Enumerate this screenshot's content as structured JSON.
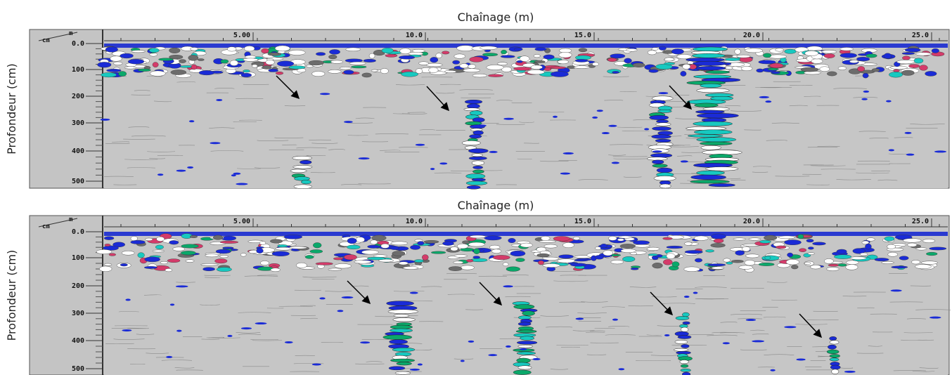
{
  "panels": [
    {
      "title": "Chaînage (m)",
      "y_label": "Profondeur (cm)",
      "x_unit": "m",
      "y_unit": "cm",
      "x_ticks": [
        "5.00",
        "10.0",
        "15.0",
        "20.0",
        "25.0"
      ],
      "y_ticks": [
        "0.0",
        "100",
        "200",
        "300",
        "400",
        "500"
      ]
    },
    {
      "title": "Chaînage (m)",
      "y_label": "Profondeur (cm)",
      "x_unit": "m",
      "y_unit": "cm",
      "x_ticks": [
        "5.00",
        "10.0",
        "15.0",
        "20.0",
        "25.0"
      ],
      "y_ticks": [
        "0.0",
        "100",
        "200",
        "300",
        "400",
        "500"
      ]
    }
  ]
}
